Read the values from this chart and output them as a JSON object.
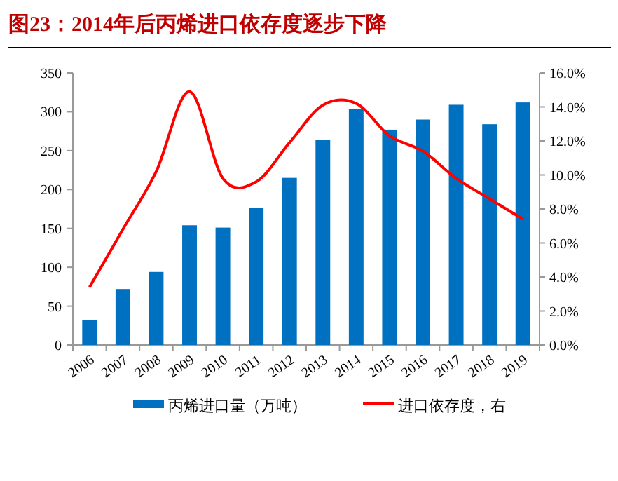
{
  "chart_data": {
    "type": "bar",
    "title": "图23：2014年后丙烯进口依存度逐步下降",
    "categories": [
      "2006",
      "2007",
      "2008",
      "2009",
      "2010",
      "2011",
      "2012",
      "2013",
      "2014",
      "2015",
      "2016",
      "2017",
      "2018",
      "2019"
    ],
    "series": [
      {
        "name": "丙烯进口量（万吨）",
        "color": "#0070c0",
        "values": [
          32,
          72,
          94,
          154,
          151,
          176,
          215,
          264,
          304,
          277,
          290,
          309,
          284,
          312
        ]
      },
      {
        "name": "进口依存度，右",
        "type": "line",
        "axis": "y2",
        "color": "#ff0000",
        "values": [
          3.4,
          6.8,
          10.2,
          14.9,
          9.8,
          9.6,
          11.9,
          14.1,
          14.2,
          12.3,
          11.4,
          9.8,
          8.6,
          7.4
        ]
      }
    ],
    "ylim": [
      0,
      350
    ],
    "yticks": [
      0,
      50,
      100,
      150,
      200,
      250,
      300,
      350
    ],
    "y2lim": [
      0,
      16
    ],
    "y2ticks": [
      {
        "value": 0,
        "label": "0.0%"
      },
      {
        "value": 2,
        "label": "2.0%"
      },
      {
        "value": 4,
        "label": "4.0%"
      },
      {
        "value": 6,
        "label": "6.0%"
      },
      {
        "value": 8,
        "label": "8.0%"
      },
      {
        "value": 10,
        "label": "10.0%"
      },
      {
        "value": 12,
        "label": "12.0%"
      },
      {
        "value": 14,
        "label": "14.0%"
      },
      {
        "value": 16,
        "label": "16.0%"
      }
    ],
    "legend": "bottom"
  }
}
